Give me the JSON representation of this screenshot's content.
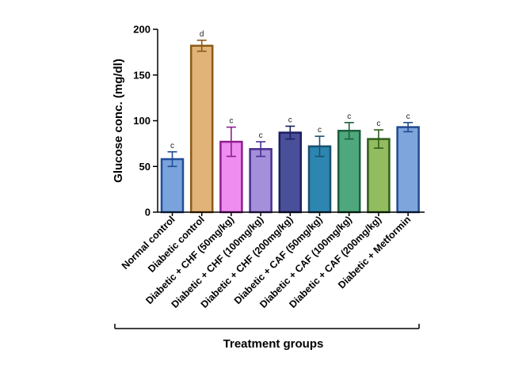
{
  "chart_data": {
    "type": "bar",
    "ylabel": "Glucose conc. (mg/dl)",
    "xlabel": "Treatment groups",
    "ylim": [
      0,
      200
    ],
    "yticks": [
      0,
      50,
      100,
      150,
      200
    ],
    "grid": false,
    "categories": [
      "Normal control",
      "Diabetic control",
      "Diabetic + CHF (50mg/kg)",
      "Diabetic + CHF (100mg/kg)",
      "Diabetic + CHF (200mg/kg)",
      "Diabetic + CAF (50mg/kg)",
      "Diabetic + CAF (100mg/kg)",
      "Diabetic + CAF (200mg/kg)",
      "Diabetic + Metformin"
    ],
    "values": [
      58,
      182,
      77,
      69,
      87,
      72,
      89,
      80,
      93
    ],
    "errors": [
      8,
      6,
      16,
      8,
      7,
      11,
      9,
      10,
      5
    ],
    "significance": [
      "c",
      "d",
      "c",
      "c",
      "c",
      "c",
      "c",
      "c",
      "c"
    ],
    "colors": [
      {
        "fill": "#7aa3dc",
        "stroke": "#1f4e9a"
      },
      {
        "fill": "#e1b378",
        "stroke": "#8c5a16"
      },
      {
        "fill": "#ef8ef0",
        "stroke": "#8e1d90"
      },
      {
        "fill": "#a38fda",
        "stroke": "#4a2f8e"
      },
      {
        "fill": "#4a4f9a",
        "stroke": "#1c1f5e"
      },
      {
        "fill": "#2c86b0",
        "stroke": "#1d4f6e"
      },
      {
        "fill": "#4fa87d",
        "stroke": "#1e5e3c"
      },
      {
        "fill": "#93bb5f",
        "stroke": "#2e5d1a"
      },
      {
        "fill": "#7ea5dc",
        "stroke": "#214a8e"
      }
    ]
  }
}
